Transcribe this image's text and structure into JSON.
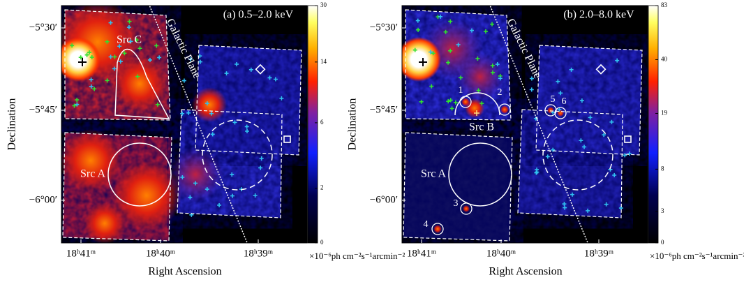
{
  "panels": [
    {
      "title": "(a) 0.5–2.0 keV",
      "galactic_plane": "Galactic Plane",
      "ylabel": "Declination",
      "xlabel": "Right Ascension",
      "yticks": [
        "−5°30′",
        "−5°45′",
        "−6°00′"
      ],
      "xticks": [
        "18ʰ41ᵐ",
        "18ʰ40ᵐ",
        "18ʰ39ᵐ"
      ],
      "colorbar_ticks": [
        0,
        2,
        6,
        14,
        30
      ],
      "colorbar_unit": "×10⁻⁶ph cm⁻²s⁻¹arcmin⁻²",
      "sources": [
        "Src C",
        "Src A"
      ]
    },
    {
      "title": "(b) 2.0–8.0 keV",
      "galactic_plane": "Galactic Plane",
      "ylabel": "Declination",
      "xlabel": "Right Ascension",
      "yticks": [
        "−5°30′",
        "−5°45′",
        "−6°00′"
      ],
      "xticks": [
        "18ʰ41ᵐ",
        "18ʰ40ᵐ",
        "18ʰ39ᵐ"
      ],
      "colorbar_ticks": [
        0,
        3,
        8,
        19,
        40,
        83
      ],
      "colorbar_unit": "×10⁻⁶ph cm⁻²s⁻¹arcmin⁻²",
      "sources": [
        "Src B",
        "Src A",
        "1",
        "2",
        "3",
        "4",
        "5",
        "6"
      ]
    }
  ]
}
